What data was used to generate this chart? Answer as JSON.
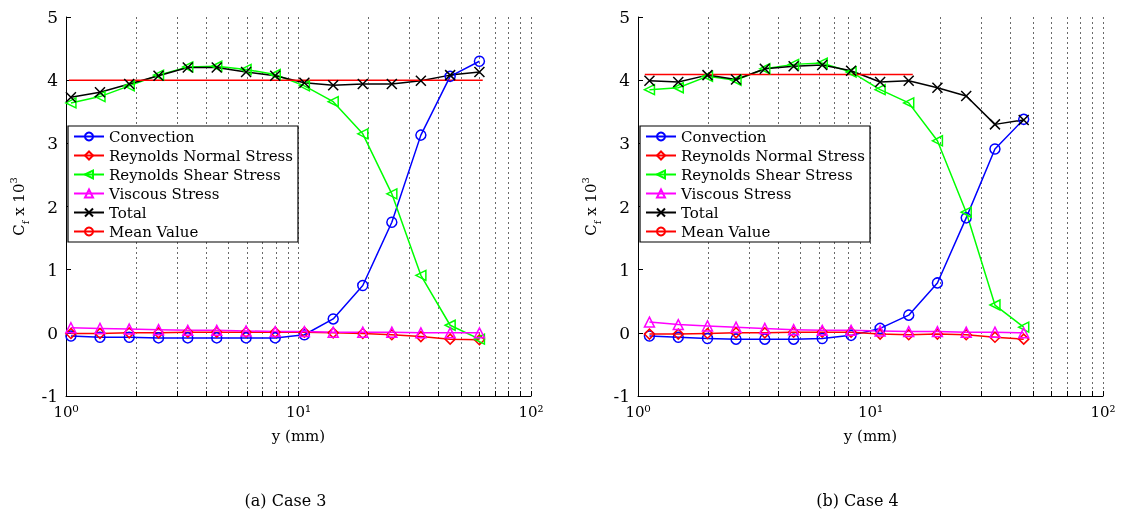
{
  "chart_data": [
    {
      "type": "line",
      "title": "(a) Case 3",
      "xlabel": "y (mm)",
      "ylabel": "C$_{f}$ x 10$^{3}$",
      "log": "x",
      "grid": "x",
      "legend": "left",
      "xlim": [
        1,
        100
      ],
      "ylim": [
        -1,
        5
      ],
      "xticks": [
        {
          "value": 1,
          "label": "10⁰"
        },
        {
          "value": 2,
          "label": null
        },
        {
          "value": 3,
          "label": null
        },
        {
          "value": 4,
          "label": null
        },
        {
          "value": 5,
          "label": null
        },
        {
          "value": 6,
          "label": null
        },
        {
          "value": 7,
          "label": null
        },
        {
          "value": 8,
          "label": null
        },
        {
          "value": 9,
          "label": null
        },
        {
          "value": 10,
          "label": "10¹"
        },
        {
          "value": 20,
          "label": null
        },
        {
          "value": 30,
          "label": null
        },
        {
          "value": 40,
          "label": null
        },
        {
          "value": 50,
          "label": null
        },
        {
          "value": 60,
          "label": null
        },
        {
          "value": 70,
          "label": null
        },
        {
          "value": 80,
          "label": null
        },
        {
          "value": 90,
          "label": null
        },
        {
          "value": 100,
          "label": "10²"
        }
      ],
      "yticks": [
        -1,
        0,
        1,
        2,
        3,
        4,
        5
      ],
      "x": [
        1.05,
        1.4,
        1.87,
        2.5,
        3.34,
        4.45,
        5.95,
        7.94,
        10.6,
        14.1,
        18.9,
        25.2,
        33.6,
        44.9,
        60
      ],
      "series": [
        {
          "name": "Convection",
          "color": "#0000ff",
          "marker": "circle",
          "values": [
            -0.05,
            -0.07,
            -0.07,
            -0.08,
            -0.08,
            -0.08,
            -0.08,
            -0.08,
            -0.03,
            0.22,
            0.75,
            1.75,
            3.13,
            4.06,
            4.3
          ]
        },
        {
          "name": "Reynolds Normal Stress",
          "color": "#ff0000",
          "marker": "diamond",
          "values": [
            -0.01,
            -0.01,
            0,
            0,
            0.01,
            0.01,
            0.01,
            0.01,
            0.01,
            0,
            -0.01,
            -0.03,
            -0.06,
            -0.1,
            -0.11
          ]
        },
        {
          "name": "Reynolds Shear Stress",
          "color": "#00ff00",
          "marker": "triangle-left",
          "values": [
            3.64,
            3.74,
            3.91,
            4.08,
            4.21,
            4.22,
            4.17,
            4.09,
            3.91,
            3.66,
            3.15,
            2.2,
            0.91,
            0.12,
            -0.1
          ]
        },
        {
          "name": "Viscous Stress",
          "color": "#ff00ff",
          "marker": "triangle",
          "values": [
            0.08,
            0.07,
            0.06,
            0.05,
            0.04,
            0.04,
            0.03,
            0.02,
            0.02,
            0.01,
            0.01,
            0.01,
            0,
            0,
            0
          ]
        },
        {
          "name": "Total",
          "color": "#000000",
          "marker": "cross",
          "values": [
            3.73,
            3.81,
            3.94,
            4.07,
            4.2,
            4.2,
            4.13,
            4.07,
            3.96,
            3.92,
            3.94,
            3.94,
            3.99,
            4.08,
            4.13
          ]
        },
        {
          "name": "Mean Value",
          "color": "#ff0000",
          "marker": "none",
          "x": [
            1.03,
            62
          ],
          "values": [
            4.0,
            4.0
          ]
        }
      ]
    },
    {
      "type": "line",
      "title": "(b) Case 4",
      "xlabel": "y (mm)",
      "ylabel": "C$_{f}$ x 10$^{3}$",
      "log": "x",
      "grid": "x",
      "legend": "left",
      "xlim": [
        1,
        100
      ],
      "ylim": [
        -1,
        5
      ],
      "xticks": [
        {
          "value": 1,
          "label": "10⁰"
        },
        {
          "value": 2,
          "label": null
        },
        {
          "value": 3,
          "label": null
        },
        {
          "value": 4,
          "label": null
        },
        {
          "value": 5,
          "label": null
        },
        {
          "value": 6,
          "label": null
        },
        {
          "value": 7,
          "label": null
        },
        {
          "value": 8,
          "label": null
        },
        {
          "value": 9,
          "label": null
        },
        {
          "value": 10,
          "label": "10¹"
        },
        {
          "value": 20,
          "label": null
        },
        {
          "value": 30,
          "label": null
        },
        {
          "value": 40,
          "label": null
        },
        {
          "value": 50,
          "label": null
        },
        {
          "value": 60,
          "label": null
        },
        {
          "value": 70,
          "label": null
        },
        {
          "value": 80,
          "label": null
        },
        {
          "value": 90,
          "label": null
        },
        {
          "value": 100,
          "label": "10²"
        }
      ],
      "yticks": [
        -1,
        0,
        1,
        2,
        3,
        4,
        5
      ],
      "x": [
        1.12,
        1.49,
        1.99,
        2.64,
        3.51,
        4.67,
        6.2,
        8.25,
        11,
        14.6,
        19.4,
        25.8,
        34.3,
        45.6
      ],
      "series": [
        {
          "name": "Convection",
          "color": "#0000ff",
          "marker": "circle",
          "values": [
            -0.05,
            -0.07,
            -0.09,
            -0.1,
            -0.1,
            -0.1,
            -0.09,
            -0.04,
            0.07,
            0.28,
            0.79,
            1.82,
            2.91,
            3.38
          ]
        },
        {
          "name": "Reynolds Normal Stress",
          "color": "#ff0000",
          "marker": "diamond",
          "values": [
            -0.02,
            -0.02,
            -0.01,
            0,
            0,
            0.01,
            0.01,
            0.01,
            -0.02,
            -0.03,
            -0.02,
            -0.03,
            -0.07,
            -0.1
          ]
        },
        {
          "name": "Reynolds Shear Stress",
          "color": "#00ff00",
          "marker": "triangle-left",
          "values": [
            3.85,
            3.88,
            4.06,
            4.0,
            4.18,
            4.25,
            4.27,
            4.13,
            3.85,
            3.64,
            3.04,
            1.91,
            0.44,
            0.09
          ]
        },
        {
          "name": "Viscous Stress",
          "color": "#ff00ff",
          "marker": "triangle",
          "values": [
            0.17,
            0.13,
            0.11,
            0.09,
            0.07,
            0.05,
            0.04,
            0.04,
            0.03,
            0.02,
            0.02,
            0.01,
            0.01,
            0
          ]
        },
        {
          "name": "Total",
          "color": "#000000",
          "marker": "cross",
          "values": [
            3.99,
            3.97,
            4.08,
            4.01,
            4.18,
            4.22,
            4.24,
            4.15,
            3.97,
            3.99,
            3.88,
            3.75,
            3.3,
            3.37
          ]
        },
        {
          "name": "Mean Value",
          "color": "#ff0000",
          "marker": "none",
          "x": [
            1.07,
            15.2
          ],
          "values": [
            4.09,
            4.09
          ]
        }
      ]
    }
  ]
}
